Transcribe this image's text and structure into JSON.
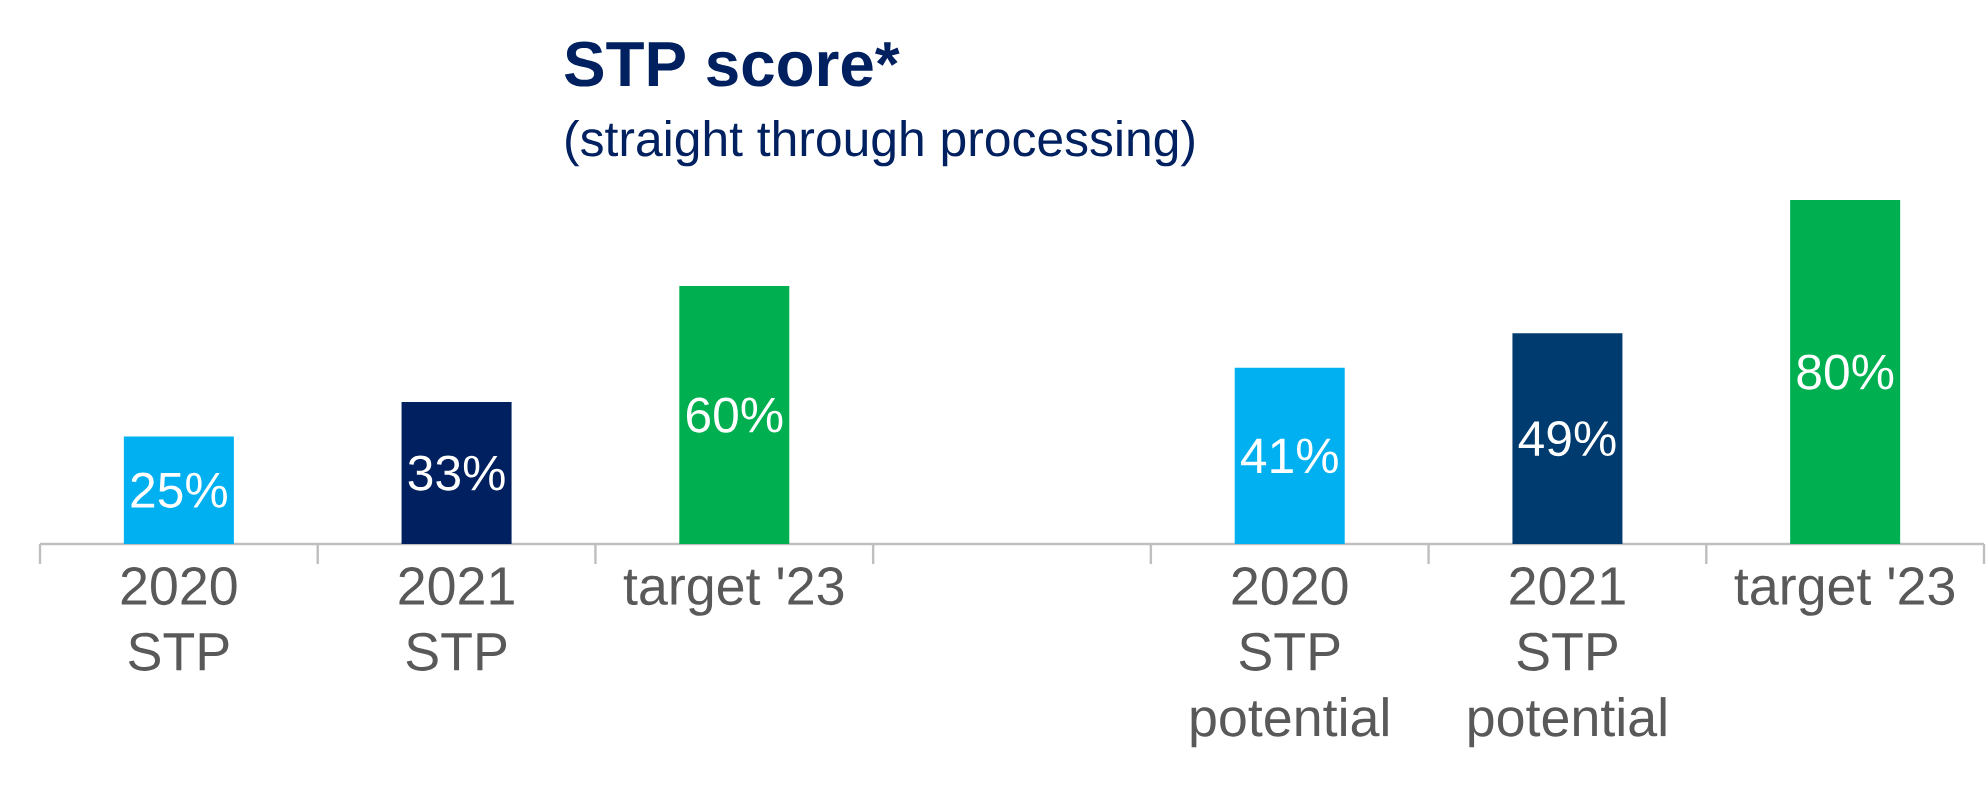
{
  "chart_data": {
    "type": "bar",
    "title": "STP score*",
    "subtitle": "(straight through processing)",
    "categories": [
      "2020\nSTP",
      "2021\nSTP",
      "target '23",
      null,
      "2020\nSTP\npotential",
      "2021\nSTP\npotential",
      "target '23"
    ],
    "values": [
      25,
      33,
      60,
      null,
      41,
      49,
      80
    ],
    "colors": [
      "#00b0f0",
      "#002060",
      "#00b050",
      null,
      "#00b0f0",
      "#003b6f",
      "#00b050"
    ],
    "value_labels": [
      "25%",
      "33%",
      "60%",
      null,
      "41%",
      "49%",
      "80%"
    ]
  }
}
